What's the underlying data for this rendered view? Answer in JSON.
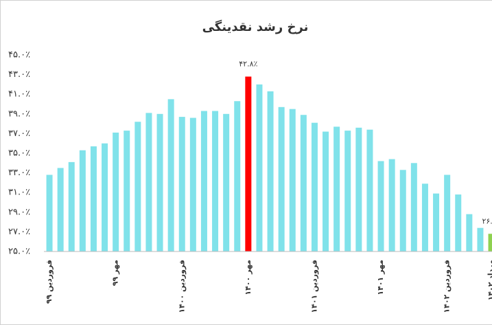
{
  "chart_data": {
    "type": "bar",
    "title": "نرخ رشد نقدینگی",
    "categories": [
      "فروردین ۹۹",
      null,
      null,
      null,
      null,
      null,
      "مهر ۹۹",
      null,
      null,
      null,
      null,
      null,
      "فروردین ۱۴۰۰",
      null,
      null,
      null,
      null,
      null,
      "مهر ۱۴۰۰",
      null,
      null,
      null,
      null,
      null,
      "فروردین ۱۴۰۱",
      null,
      null,
      null,
      null,
      null,
      "مهر ۱۴۰۱",
      null,
      null,
      null,
      null,
      null,
      "فروردین ۱۴۰۲",
      null,
      null,
      null,
      "مرداد ۱۴۰۲"
    ],
    "values": [
      32.8,
      33.5,
      34.1,
      35.3,
      35.7,
      36.0,
      37.1,
      37.3,
      38.2,
      39.1,
      39.0,
      40.5,
      38.7,
      38.6,
      39.3,
      39.3,
      39.0,
      40.3,
      42.8,
      42.0,
      41.3,
      39.7,
      39.5,
      38.9,
      38.1,
      37.2,
      37.7,
      37.3,
      37.6,
      37.4,
      34.2,
      34.4,
      33.3,
      34.0,
      31.9,
      30.9,
      32.8,
      30.8,
      28.8,
      27.4,
      26.8
    ],
    "value_labels": [
      null,
      null,
      null,
      null,
      null,
      null,
      null,
      null,
      null,
      null,
      null,
      null,
      null,
      null,
      null,
      null,
      null,
      null,
      "۴۲.۸٪",
      null,
      null,
      null,
      null,
      null,
      null,
      null,
      null,
      null,
      null,
      null,
      null,
      null,
      null,
      null,
      null,
      null,
      null,
      null,
      null,
      null,
      "۲۶.۸٪"
    ],
    "color": "#80e2ea",
    "colors": [
      null,
      null,
      null,
      null,
      null,
      null,
      null,
      null,
      null,
      null,
      null,
      null,
      null,
      null,
      null,
      null,
      null,
      null,
      "#ff0000",
      null,
      null,
      null,
      null,
      null,
      null,
      null,
      null,
      null,
      null,
      null,
      null,
      null,
      null,
      null,
      null,
      null,
      null,
      null,
      null,
      null,
      "#8ed150"
    ],
    "ylim": [
      25,
      45
    ],
    "yticks": [
      {
        "value": 25,
        "label": "۲۵.۰٪"
      },
      {
        "value": 27,
        "label": "۲۷.۰٪"
      },
      {
        "value": 29,
        "label": "۲۹.۰٪"
      },
      {
        "value": 31,
        "label": "۳۱.۰٪"
      },
      {
        "value": 33,
        "label": "۳۳.۰٪"
      },
      {
        "value": 35,
        "label": "۳۵.۰٪"
      },
      {
        "value": 37,
        "label": "۳۷.۰٪"
      },
      {
        "value": 39,
        "label": "۳۹.۰٪"
      },
      {
        "value": 41,
        "label": "۴۱.۰٪"
      },
      {
        "value": 43,
        "label": "۴۳.۰٪"
      },
      {
        "value": 45,
        "label": "۴۵.۰٪"
      }
    ],
    "grid": false
  }
}
